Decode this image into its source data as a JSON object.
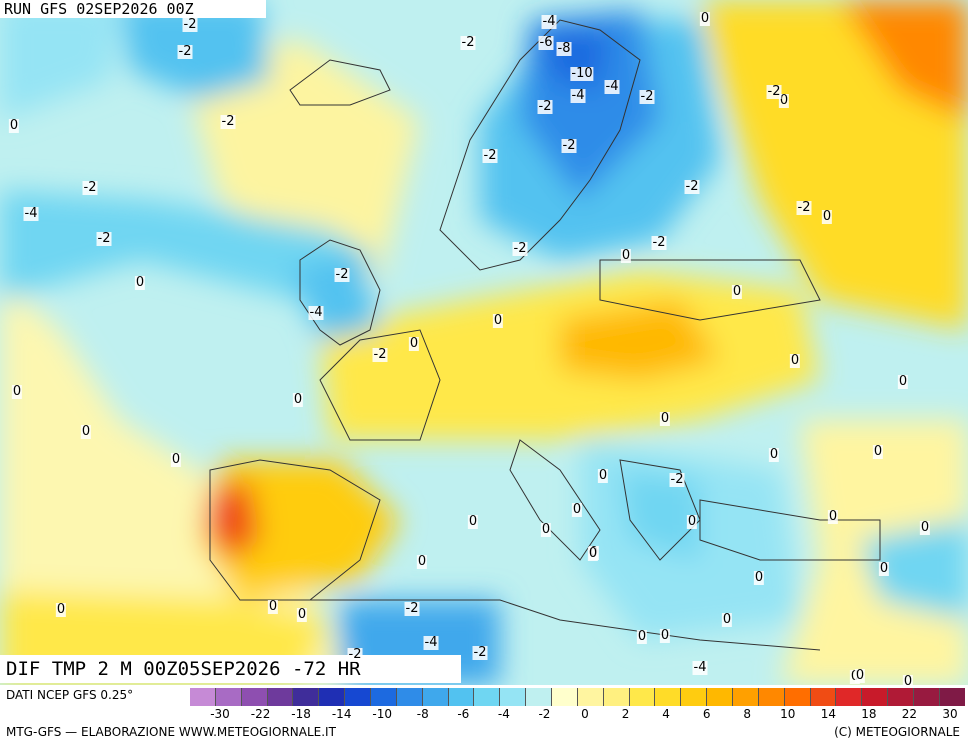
{
  "header": {
    "run_label": "RUN GFS 02SEP2026 00Z"
  },
  "map": {
    "title": "DIF TMP 2 M 00Z05SEP2026 -72 HR",
    "colors": {
      "ocean_base": "#bff0f0",
      "land_warm": "#f6e96a",
      "cold": "#37b8e8",
      "hot": "#f09030",
      "border": "#333333"
    },
    "labels": [
      {
        "t": "-2"
      },
      {
        "t": "-2"
      },
      {
        "t": "-2"
      },
      {
        "t": "-4"
      },
      {
        "t": "-6"
      },
      {
        "t": "-8"
      },
      {
        "t": "0"
      },
      {
        "t": "-10"
      },
      {
        "t": "-4"
      },
      {
        "t": "-2"
      },
      {
        "t": "-4"
      },
      {
        "t": "-2"
      },
      {
        "t": "-2"
      },
      {
        "t": "0"
      },
      {
        "t": "0"
      },
      {
        "t": "-2"
      },
      {
        "t": "-2"
      },
      {
        "t": "-2"
      },
      {
        "t": "-2"
      },
      {
        "t": "-2"
      },
      {
        "t": "-4"
      },
      {
        "t": "0"
      },
      {
        "t": "-2"
      },
      {
        "t": "-2"
      },
      {
        "t": "0"
      },
      {
        "t": "-2"
      },
      {
        "t": "0"
      },
      {
        "t": "-2"
      },
      {
        "t": "0"
      },
      {
        "t": "0"
      },
      {
        "t": "-4"
      },
      {
        "t": "0"
      },
      {
        "t": "-2"
      },
      {
        "t": "0"
      },
      {
        "t": "-2"
      },
      {
        "t": "0"
      },
      {
        "t": "0"
      },
      {
        "t": "0"
      },
      {
        "t": "0"
      },
      {
        "t": "0"
      },
      {
        "t": "0"
      },
      {
        "t": "0"
      },
      {
        "t": "0"
      },
      {
        "t": "0"
      },
      {
        "t": "0"
      },
      {
        "t": "0"
      },
      {
        "t": "0"
      },
      {
        "t": "0"
      },
      {
        "t": "-2"
      },
      {
        "t": "0"
      },
      {
        "t": "0"
      },
      {
        "t": "0"
      },
      {
        "t": "0"
      },
      {
        "t": "0"
      },
      {
        "t": "0"
      },
      {
        "t": "0"
      },
      {
        "t": "0"
      },
      {
        "t": "-2"
      },
      {
        "t": "0"
      },
      {
        "t": "0"
      },
      {
        "t": "0"
      },
      {
        "t": "-2"
      },
      {
        "t": "-4"
      },
      {
        "t": "-2"
      },
      {
        "t": "-4"
      },
      {
        "t": "0"
      },
      {
        "t": "0"
      },
      {
        "t": "0"
      },
      {
        "t": "0"
      },
      {
        "t": "0"
      }
    ]
  },
  "legend": {
    "source": "DATI NCEP GFS 0.25°",
    "colors": [
      "#c68ad6",
      "#a86bc4",
      "#8e4fb0",
      "#6e3a9c",
      "#3f2d9a",
      "#1f2fb4",
      "#1648d2",
      "#1d6ae0",
      "#2f8ce8",
      "#3fa8ec",
      "#52c2f0",
      "#6fd6f2",
      "#95e4f4",
      "#bff0f0",
      "#ffffcc",
      "#fff5a0",
      "#fff080",
      "#ffe84a",
      "#ffdc28",
      "#ffcc10",
      "#ffb800",
      "#ffa000",
      "#ff8800",
      "#ff6e00",
      "#f04c14",
      "#e02828",
      "#c81a2a",
      "#b01a36",
      "#981a40",
      "#7f1a46"
    ],
    "ticks": [
      "-30",
      "-22",
      "-18",
      "-14",
      "-10",
      "-8",
      "-6",
      "-4",
      "-2",
      "0",
      "2",
      "4",
      "6",
      "8",
      "10",
      "14",
      "18",
      "22",
      "30"
    ]
  },
  "footer": {
    "credit": "MTG-GFS — ELABORAZIONE WWW.METEOGIORNALE.IT",
    "copyright": "(C) METEOGIORNALE"
  }
}
